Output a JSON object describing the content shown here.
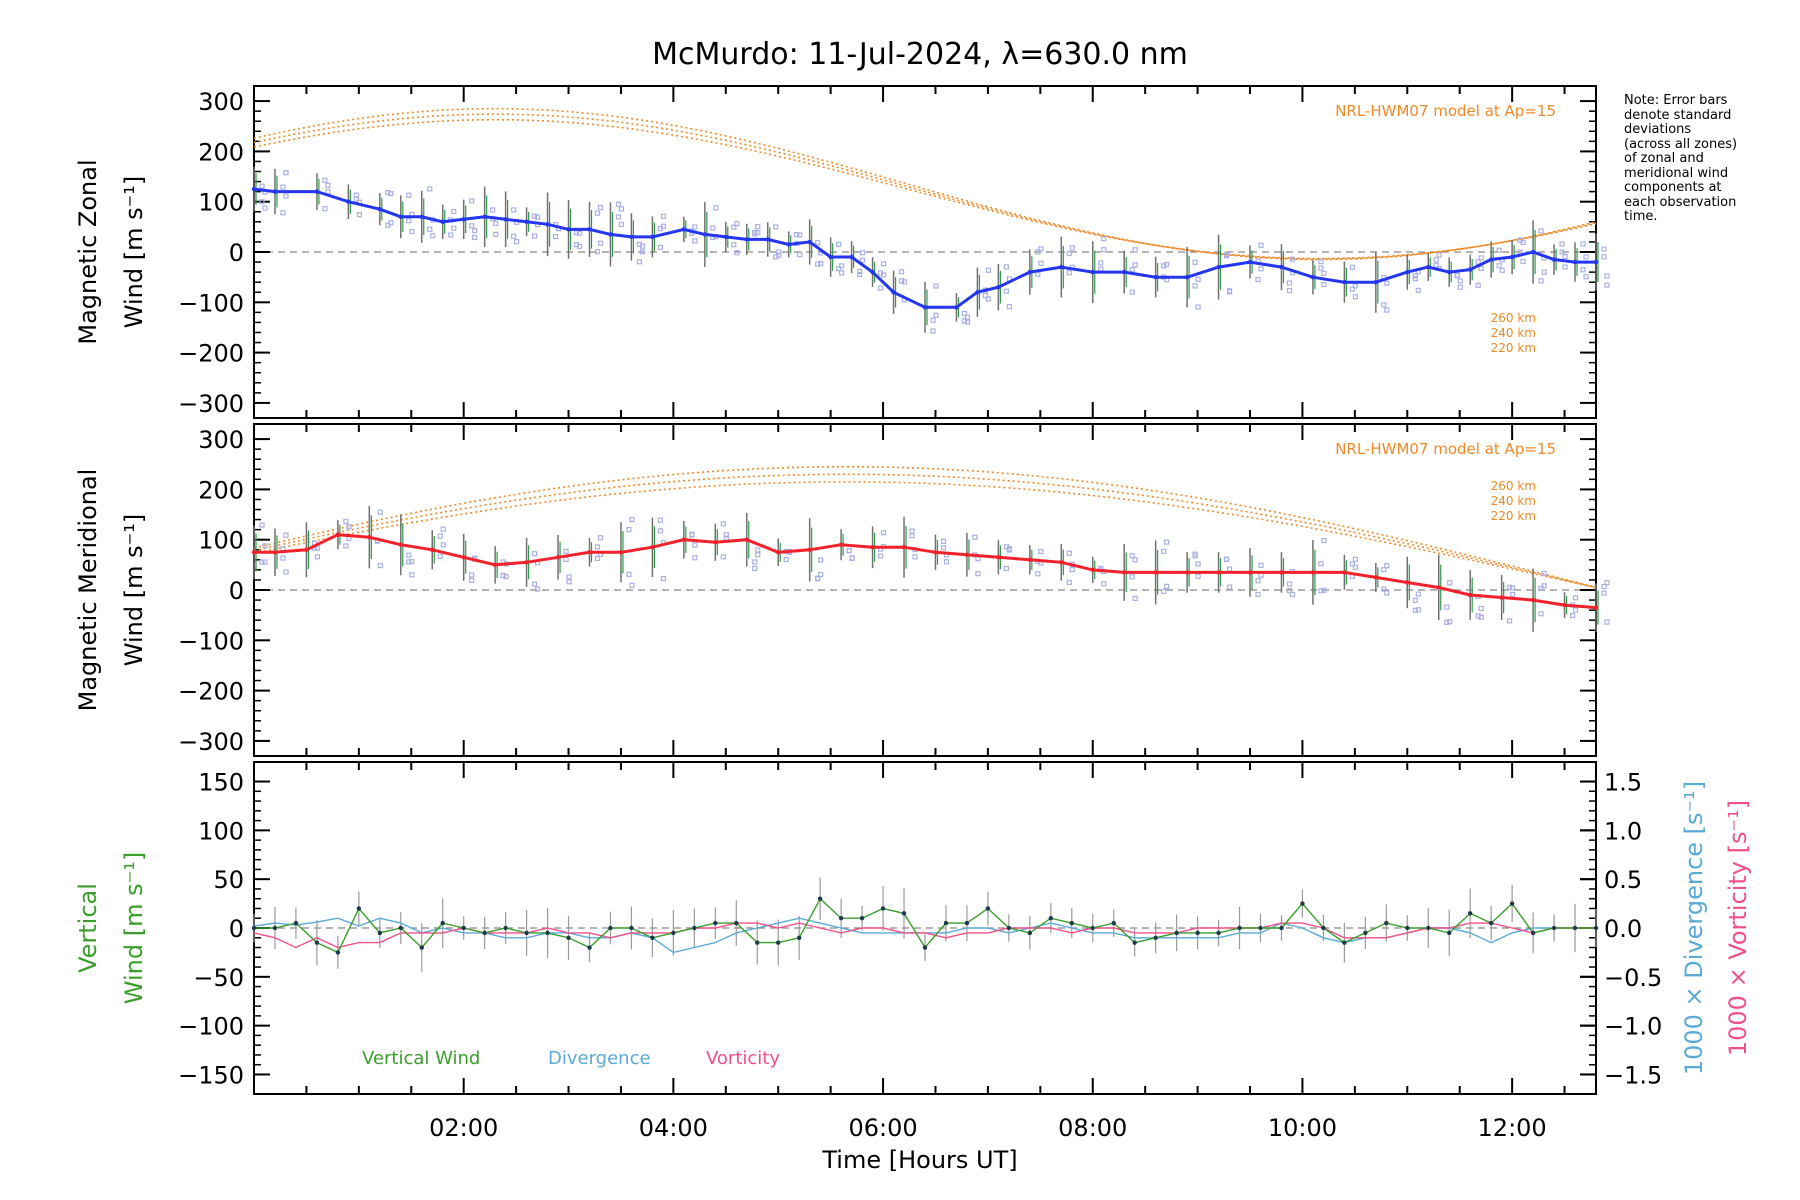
{
  "title": "McMurdo: 11-Jul-2024, λ=630.0 nm",
  "note_lines": [
    "Note: Error bars",
    "denote standard",
    "deviations",
    "(across all zones)",
    "of zonal and",
    "meridional wind",
    "components at",
    "each observation",
    "time."
  ],
  "colors": {
    "zonal": "#2436ef",
    "meridional": "#f2222c",
    "vertical": "#3a9e2a",
    "divergence": "#5aaad6",
    "vorticity": "#f0508a",
    "model": "#f08a28",
    "zone_markers": "#aab0e6",
    "error_bars": "#707070"
  },
  "chart_data": [
    {
      "type": "line",
      "name": "zonal",
      "ylabel_lines": [
        "Magnetic Zonal",
        "Wind [m s⁻¹]"
      ],
      "ylim": [
        -330,
        330
      ],
      "y_ticks": [
        300,
        200,
        100,
        0,
        -100,
        -200,
        -300
      ],
      "y_tick_labels": [
        "300",
        "200",
        "100",
        "0",
        "−100",
        "−200",
        "−300"
      ],
      "model_label": "NRL-HWM07 model at Ap=15",
      "model_heights": [
        "260 km",
        "240 km",
        "220 km"
      ],
      "zero_line": true,
      "series": [
        {
          "x": [
            0.0,
            0.2,
            0.6,
            0.9,
            1.2,
            1.4,
            1.6,
            1.8,
            2.0,
            2.2,
            2.4,
            2.6,
            2.8,
            3.0,
            3.2,
            3.4,
            3.6,
            3.8,
            4.1,
            4.3,
            4.5,
            4.7,
            4.9,
            5.1,
            5.3,
            5.5,
            5.7,
            5.9,
            6.1,
            6.4,
            6.7,
            6.9,
            7.1,
            7.4,
            7.7,
            8.0,
            8.3,
            8.6,
            8.9,
            9.2,
            9.5,
            9.8,
            10.1,
            10.4,
            10.7,
            11.0,
            11.2,
            11.4,
            11.6,
            11.8,
            12.0,
            12.2,
            12.4,
            12.6,
            12.8
          ],
          "y": [
            125,
            120,
            120,
            100,
            85,
            70,
            70,
            60,
            65,
            70,
            65,
            60,
            55,
            45,
            45,
            35,
            30,
            30,
            45,
            35,
            30,
            25,
            25,
            15,
            20,
            -10,
            -10,
            -40,
            -80,
            -110,
            -110,
            -80,
            -70,
            -40,
            -30,
            -40,
            -40,
            -50,
            -50,
            -30,
            -20,
            -30,
            -50,
            -60,
            -60,
            -40,
            -30,
            -40,
            -35,
            -15,
            -10,
            0,
            -15,
            -20,
            -20
          ]
        }
      ]
    },
    {
      "type": "line",
      "name": "meridional",
      "ylabel_lines": [
        "Magnetic Meridional",
        "Wind [m s⁻¹]"
      ],
      "ylim": [
        -330,
        330
      ],
      "y_ticks": [
        300,
        200,
        100,
        0,
        -100,
        -200,
        -300
      ],
      "y_tick_labels": [
        "300",
        "200",
        "100",
        "0",
        "−100",
        "−200",
        "−300"
      ],
      "model_label": "NRL-HWM07 model at Ap=15",
      "model_heights": [
        "260 km",
        "240 km",
        "220 km"
      ],
      "zero_line": true,
      "series": [
        {
          "x": [
            0.0,
            0.2,
            0.5,
            0.8,
            1.1,
            1.4,
            1.7,
            2.0,
            2.3,
            2.6,
            2.9,
            3.2,
            3.5,
            3.8,
            4.1,
            4.4,
            4.7,
            5.0,
            5.3,
            5.6,
            5.9,
            6.2,
            6.5,
            6.8,
            7.1,
            7.4,
            7.7,
            8.0,
            8.3,
            8.6,
            8.9,
            9.2,
            9.5,
            9.8,
            10.1,
            10.4,
            10.7,
            11.0,
            11.3,
            11.6,
            11.9,
            12.2,
            12.5,
            12.8
          ],
          "y": [
            75,
            75,
            80,
            110,
            105,
            90,
            80,
            65,
            50,
            55,
            65,
            75,
            75,
            85,
            100,
            95,
            100,
            75,
            80,
            90,
            85,
            85,
            75,
            70,
            65,
            60,
            55,
            40,
            35,
            35,
            35,
            35,
            35,
            35,
            35,
            35,
            25,
            15,
            5,
            -10,
            -15,
            -20,
            -30,
            -35
          ]
        }
      ]
    },
    {
      "type": "line",
      "name": "vertical",
      "ylabel_lines": [
        "Vertical",
        "Wind [m s⁻¹]"
      ],
      "y2label_lines": [
        "1000 × Divergence [s⁻¹]",
        "1000 × Vorticity [s⁻¹]"
      ],
      "ylim": [
        -170,
        170
      ],
      "y_ticks": [
        150,
        100,
        50,
        0,
        -50,
        -100,
        -150
      ],
      "y_tick_labels": [
        "150",
        "100",
        "50",
        "0",
        "−50",
        "−100",
        "−150"
      ],
      "y2lim": [
        -1.7,
        1.7
      ],
      "y2_ticks": [
        1.5,
        1.0,
        0.5,
        0.0,
        -0.5,
        -1.0,
        -1.5
      ],
      "y2_tick_labels": [
        "1.5",
        "1.0",
        "0.5",
        "0.0",
        "−0.5",
        "−1.0",
        "−1.5"
      ],
      "legend": [
        "Vertical Wind",
        "Divergence",
        "Vorticity"
      ],
      "zero_line": true,
      "x": [
        0.0,
        0.2,
        0.4,
        0.6,
        0.8,
        1.0,
        1.2,
        1.4,
        1.6,
        1.8,
        2.0,
        2.2,
        2.4,
        2.6,
        2.8,
        3.0,
        3.2,
        3.4,
        3.6,
        3.8,
        4.0,
        4.2,
        4.4,
        4.6,
        4.8,
        5.0,
        5.2,
        5.4,
        5.6,
        5.8,
        6.0,
        6.2,
        6.4,
        6.6,
        6.8,
        7.0,
        7.2,
        7.4,
        7.6,
        7.8,
        8.0,
        8.2,
        8.4,
        8.6,
        8.8,
        9.0,
        9.2,
        9.4,
        9.6,
        9.8,
        10.0,
        10.2,
        10.4,
        10.6,
        10.8,
        11.0,
        11.2,
        11.4,
        11.6,
        11.8,
        12.0,
        12.2,
        12.4,
        12.6,
        12.8
      ],
      "series": [
        {
          "name": "Vertical Wind",
          "y": [
            0,
            0,
            5,
            -15,
            -25,
            20,
            -5,
            0,
            -20,
            5,
            0,
            -5,
            0,
            -5,
            -5,
            -10,
            -20,
            0,
            0,
            -10,
            -5,
            0,
            5,
            5,
            -15,
            -15,
            -10,
            30,
            10,
            10,
            20,
            15,
            -20,
            5,
            5,
            20,
            0,
            -5,
            10,
            5,
            0,
            5,
            -15,
            -10,
            -5,
            -5,
            -5,
            0,
            0,
            0,
            25,
            0,
            -15,
            -5,
            5,
            0,
            0,
            -5,
            15,
            5,
            25,
            -5,
            0,
            0,
            0
          ]
        },
        {
          "name": "Divergence",
          "y": [
            0.02,
            0.05,
            0.03,
            0.06,
            0.1,
            0.02,
            0.1,
            0.05,
            -0.05,
            0.0,
            -0.05,
            -0.05,
            -0.1,
            -0.1,
            -0.05,
            -0.05,
            -0.1,
            -0.1,
            -0.05,
            -0.1,
            -0.25,
            -0.2,
            -0.15,
            -0.05,
            0.0,
            0.05,
            0.1,
            0.05,
            0.0,
            -0.05,
            -0.05,
            -0.05,
            -0.05,
            -0.05,
            0.0,
            0.0,
            -0.05,
            0.0,
            0.05,
            0.0,
            -0.05,
            -0.05,
            -0.1,
            -0.1,
            -0.1,
            -0.1,
            -0.1,
            -0.05,
            -0.05,
            0.05,
            0.0,
            -0.1,
            -0.15,
            -0.1,
            -0.1,
            -0.05,
            0.0,
            0.0,
            -0.05,
            -0.15,
            -0.05,
            0.0,
            0.0,
            0.0,
            0.0
          ]
        },
        {
          "name": "Vorticity",
          "y": [
            -0.05,
            -0.1,
            -0.2,
            -0.1,
            -0.2,
            -0.15,
            -0.15,
            -0.05,
            -0.05,
            -0.05,
            0.0,
            -0.05,
            -0.05,
            -0.05,
            0.0,
            -0.05,
            -0.05,
            -0.1,
            -0.05,
            -0.05,
            -0.05,
            0.0,
            0.0,
            0.05,
            0.05,
            0.0,
            0.05,
            0.0,
            -0.05,
            0.0,
            0.0,
            -0.05,
            -0.05,
            -0.1,
            -0.05,
            -0.05,
            0.0,
            0.0,
            0.0,
            -0.05,
            0.0,
            0.0,
            -0.05,
            -0.05,
            -0.05,
            0.0,
            0.0,
            0.0,
            0.0,
            0.05,
            0.05,
            0.0,
            -0.1,
            -0.1,
            -0.1,
            -0.05,
            0.0,
            0.0,
            0.05,
            0.05,
            0.0,
            -0.05,
            0.0,
            0.0,
            0.0
          ]
        }
      ]
    }
  ],
  "x_axis": {
    "label": "Time [Hours UT]",
    "xlim": [
      0.0,
      12.8
    ],
    "ticks": [
      2,
      4,
      6,
      8,
      10,
      12
    ],
    "tick_labels": [
      "02:00",
      "04:00",
      "06:00",
      "08:00",
      "10:00",
      "12:00"
    ]
  }
}
